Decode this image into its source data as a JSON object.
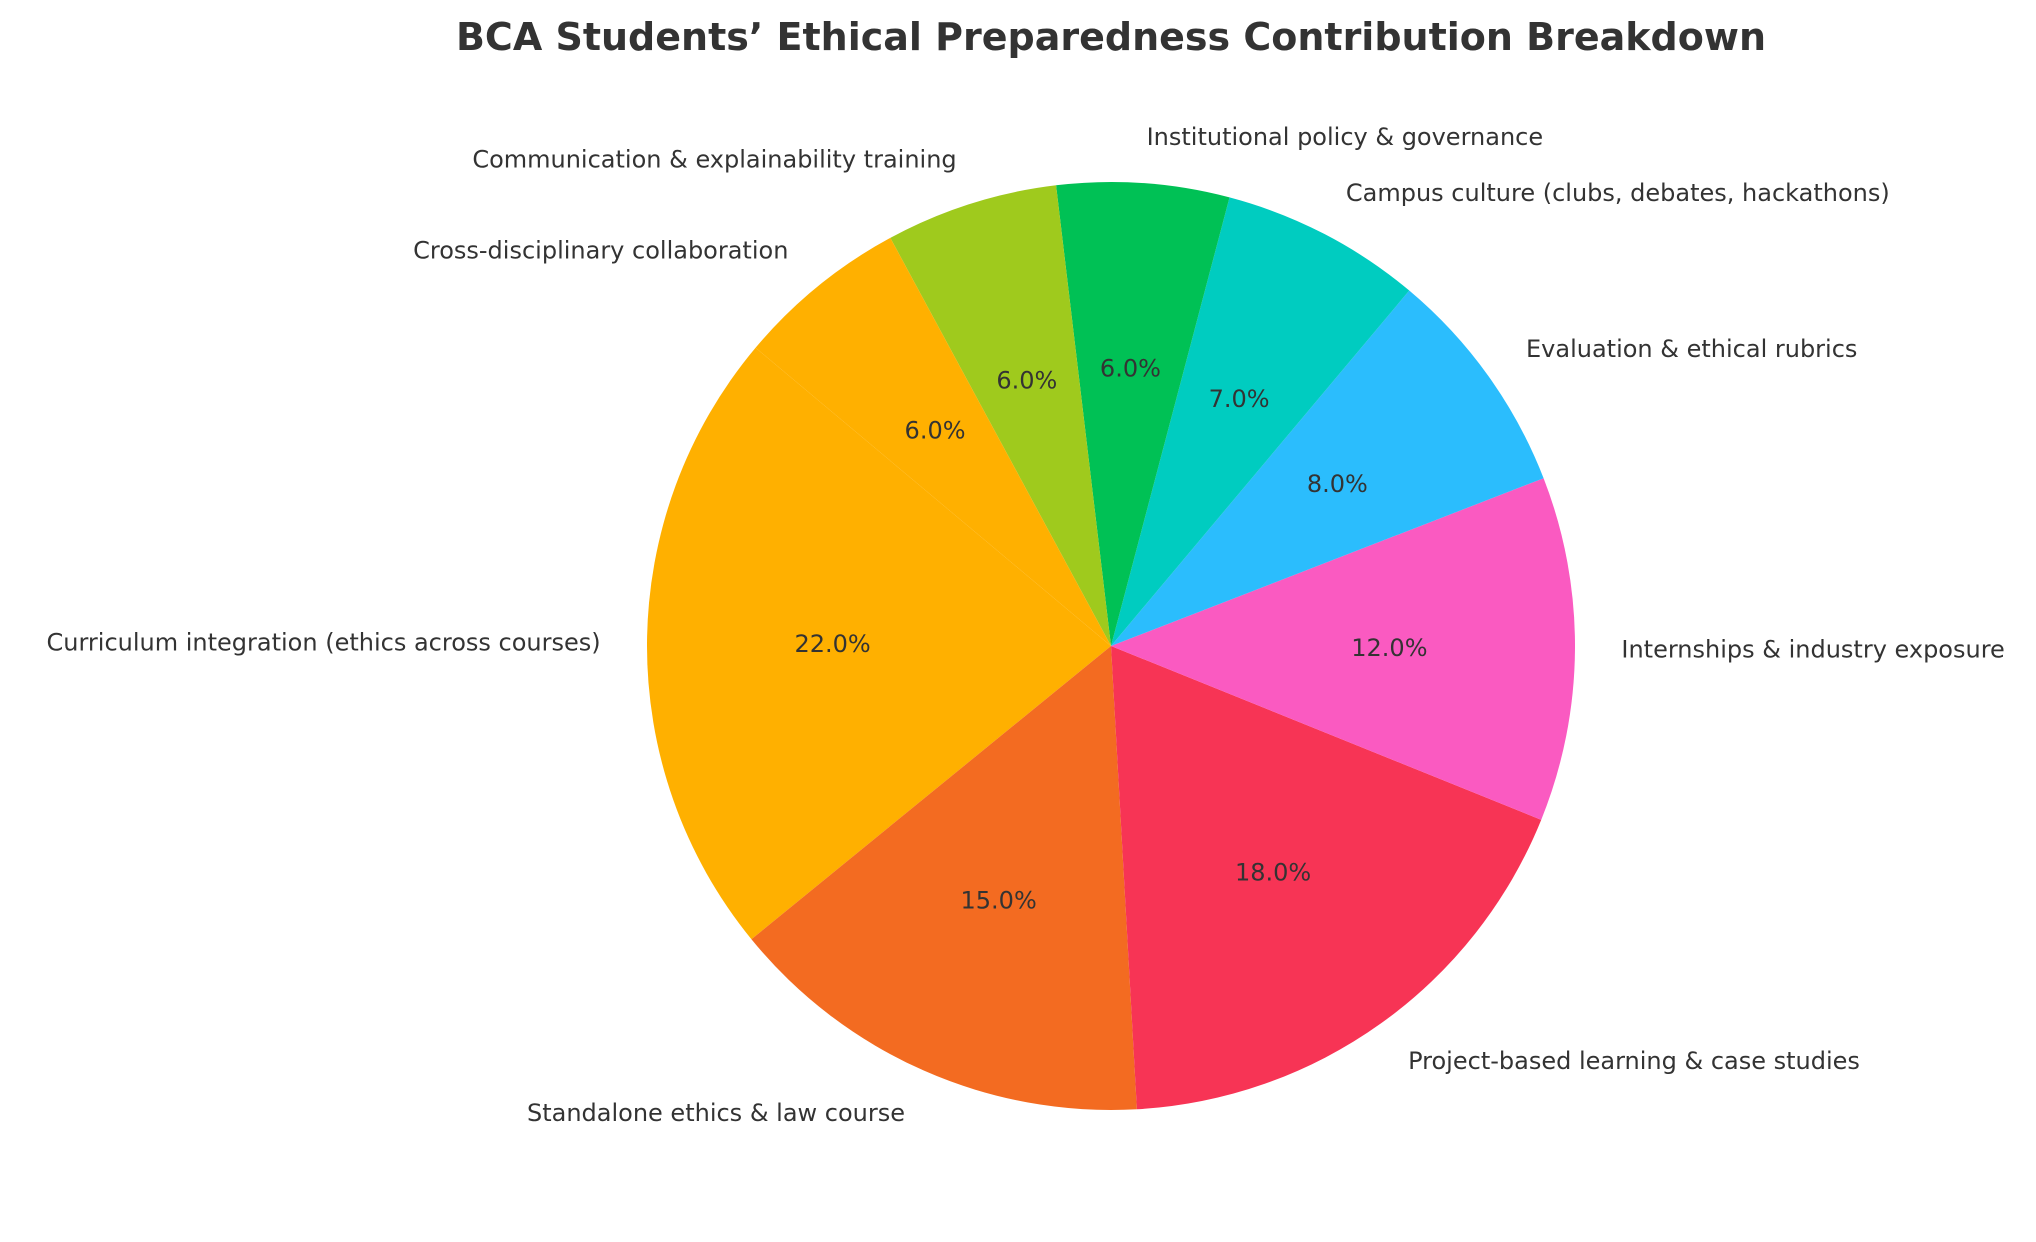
{
  "chart_data": {
    "type": "pie",
    "title": "BCA Students’ Ethical Preparedness Contribution Breakdown",
    "start_angle_deg": 140,
    "direction": "counterclockwise",
    "slices": [
      {
        "label": "Curriculum integration (ethics across courses)",
        "value": 22.0,
        "pct_label": "22.0%",
        "color": "#FFB000"
      },
      {
        "label": "Standalone ethics & law course",
        "value": 15.0,
        "pct_label": "15.0%",
        "color": "#F36B21"
      },
      {
        "label": "Project-based learning & case studies",
        "value": 18.0,
        "pct_label": "18.0%",
        "color": "#F73455"
      },
      {
        "label": "Internships & industry exposure",
        "value": 12.0,
        "pct_label": "12.0%",
        "color": "#FA5AC1"
      },
      {
        "label": "Evaluation & ethical rubrics",
        "value": 8.0,
        "pct_label": "8.0%",
        "color": "#2BBDFD"
      },
      {
        "label": "Campus culture (clubs, debates, hackathons)",
        "value": 7.0,
        "pct_label": "7.0%",
        "color": "#00CCC0"
      },
      {
        "label": "Institutional policy & governance",
        "value": 6.0,
        "pct_label": "6.0%",
        "color": "#00C155"
      },
      {
        "label": "Communication & explainability training",
        "value": 6.0,
        "pct_label": "6.0%",
        "color": "#9FCA1D"
      },
      {
        "label": "Cross-disciplinary collaboration",
        "value": 6.0,
        "pct_label": "6.0%",
        "color": "#FFB000"
      }
    ]
  }
}
